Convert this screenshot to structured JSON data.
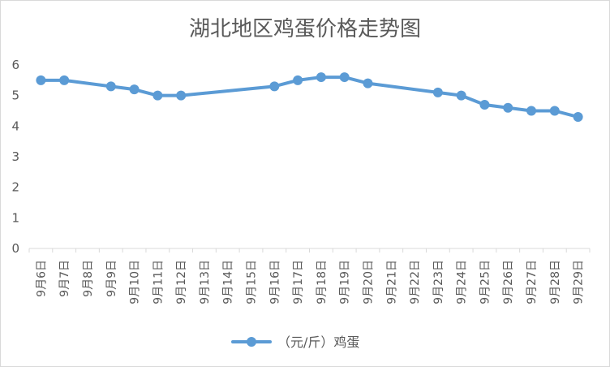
{
  "chart_data": {
    "type": "line",
    "title": "湖北地区鸡蛋价格走势图",
    "categories": [
      "9月6日",
      "9月7日",
      "9月8日",
      "9月9日",
      "9月10日",
      "9月11日",
      "9月12日",
      "9月13日",
      "9月14日",
      "9月15日",
      "9月16日",
      "9月17日",
      "9月18日",
      "9月19日",
      "9月20日",
      "9月21日",
      "9月22日",
      "9月23日",
      "9月24日",
      "9月25日",
      "9月26日",
      "9月27日",
      "9月28日",
      "9月29日"
    ],
    "series": [
      {
        "name": "（元/斤）鸡蛋",
        "color": "#5b9bd5",
        "values": [
          5.5,
          5.5,
          null,
          5.3,
          5.2,
          5.0,
          5.0,
          null,
          null,
          null,
          5.3,
          5.5,
          5.6,
          5.6,
          5.4,
          null,
          null,
          5.1,
          5.0,
          4.7,
          4.6,
          4.5,
          4.5,
          4.3
        ]
      }
    ],
    "y_ticks": [
      "0",
      "1",
      "2",
      "3",
      "4",
      "5",
      "6"
    ],
    "ylim": [
      0,
      6
    ],
    "xlabel": "",
    "ylabel": "",
    "grid": false,
    "gaps": "span",
    "legend_position": "bottom",
    "marker": "circle"
  }
}
